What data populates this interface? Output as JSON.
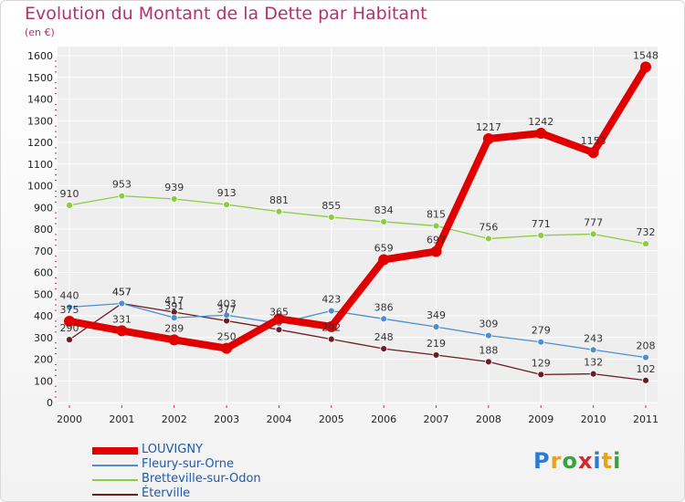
{
  "title": "Evolution du Montant de la Dette par Habitant",
  "subtitle": "(en €)",
  "logo_text": "Proxiti",
  "chart_data": {
    "type": "line",
    "x": [
      "2000",
      "2001",
      "2002",
      "2003",
      "2004",
      "2005",
      "2006",
      "2007",
      "2008",
      "2009",
      "2010",
      "2011"
    ],
    "ylim": [
      0,
      1600
    ],
    "yticks": [
      0,
      100,
      200,
      300,
      400,
      500,
      600,
      700,
      800,
      900,
      1000,
      1100,
      1200,
      1300,
      1400,
      1500,
      1600
    ],
    "grid": true,
    "legend_position": "bottom-left",
    "series": [
      {
        "name": "LOUVIGNY",
        "color": "#e00000",
        "values": [
          375,
          331,
          289,
          250,
          386,
          350,
          659,
          697,
          1217,
          1242,
          1153,
          1548
        ],
        "labels": [
          "375",
          "331",
          "289",
          "250",
          "",
          "",
          "659",
          "697",
          "1217",
          "1242",
          "1153",
          "1548"
        ]
      },
      {
        "name": "Fleury-sur-Orne",
        "color": "#4d8fce",
        "values": [
          440,
          457,
          391,
          403,
          365,
          423,
          386,
          349,
          309,
          279,
          243,
          208
        ],
        "labels": [
          "440",
          "457",
          "391",
          "403",
          "365",
          "423",
          "386",
          "349",
          "309",
          "279",
          "243",
          "208"
        ]
      },
      {
        "name": "Bretteville-sur-Odon",
        "color": "#8ccc40",
        "values": [
          910,
          953,
          939,
          913,
          881,
          855,
          834,
          815,
          756,
          771,
          777,
          732
        ],
        "labels": [
          "910",
          "953",
          "939",
          "913",
          "881",
          "855",
          "834",
          "815",
          "756",
          "771",
          "777",
          "732"
        ]
      },
      {
        "name": "Éterville",
        "color": "#6b1c24",
        "values": [
          290,
          457,
          417,
          377,
          336,
          292,
          248,
          219,
          188,
          129,
          132,
          102
        ],
        "labels": [
          "290",
          "457",
          "417",
          "377",
          "",
          "292",
          "248",
          "219",
          "188",
          "129",
          "132",
          "102"
        ]
      }
    ]
  }
}
